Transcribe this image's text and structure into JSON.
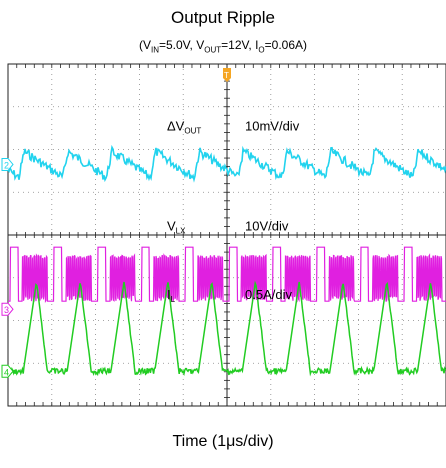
{
  "chart_data": {
    "type": "line",
    "title": "Output Ripple",
    "subtitle": {
      "vin_sym": "V",
      "vin_sub": "IN",
      "vin_val": "=5.0V, ",
      "vout_sym": "V",
      "vout_sub": "OUT",
      "vout_val": "=12V, ",
      "io_sym": "I",
      "io_sub": "O",
      "io_val": "=0.06A"
    },
    "xlabel": "Time (1μs/div)",
    "grid": true,
    "divisions": {
      "x": 10,
      "y": 8
    },
    "trigger_marker": "T",
    "background": "#ffffff",
    "series": [
      {
        "name": "ΔVOUT",
        "name_main": "ΔV",
        "name_sub": "OUT",
        "scale": "10mV/div",
        "channel": "2",
        "color": "#22d3ee",
        "waveform": "sawtooth-ripple",
        "cycles_in_window": 10
      },
      {
        "name": "VLX",
        "name_main": "V",
        "name_sub": "LX",
        "scale": "10V/div",
        "channel": "3",
        "color": "#e020e0",
        "waveform": "switching-burst",
        "cycles_in_window": 10
      },
      {
        "name": "IL",
        "name_main": "I",
        "name_sub": "L",
        "scale": "0.5A/div",
        "channel": "4",
        "color": "#22cc22",
        "waveform": "triangular-pulses",
        "cycles_in_window": 10,
        "peak_divisions": 2.1
      }
    ]
  }
}
